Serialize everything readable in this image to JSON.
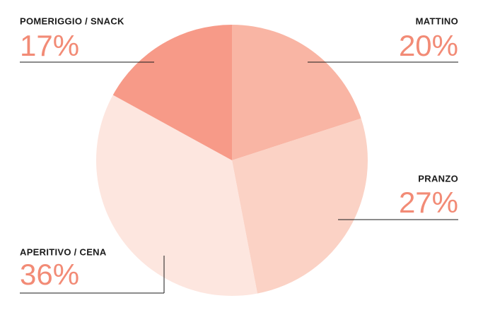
{
  "chart_data": {
    "type": "pie",
    "categories": [
      "MATTINO",
      "PRANZO",
      "APERITIVO / CENA",
      "POMERIGGIO / SNACK"
    ],
    "values": [
      20,
      27,
      36,
      17
    ],
    "value_labels": [
      "20%",
      "27%",
      "36%",
      "17%"
    ],
    "colors": [
      "#f9b5a4",
      "#fbd2c5",
      "#fde6df",
      "#f79a88"
    ]
  }
}
